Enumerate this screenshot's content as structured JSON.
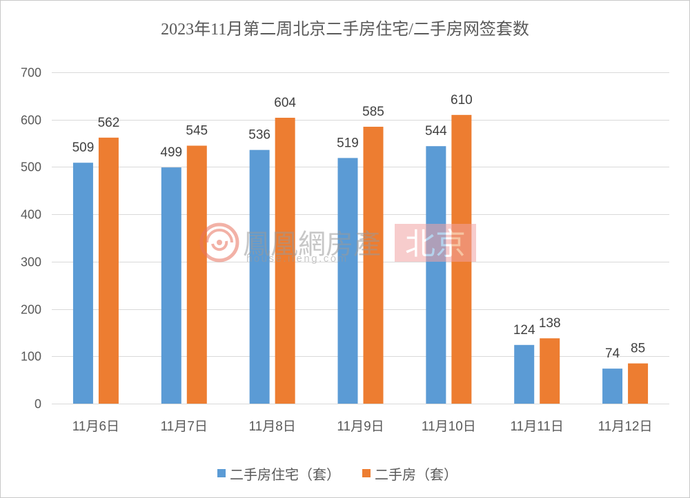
{
  "chart_data": {
    "type": "bar",
    "title": "2023年11月第二周北京二手房住宅/二手房网签套数",
    "xlabel": "",
    "ylabel": "",
    "categories": [
      "11月6日",
      "11月7日",
      "11月8日",
      "11月9日",
      "11月10日",
      "11月11日",
      "11月12日"
    ],
    "series": [
      {
        "name": "二手房住宅（套）",
        "color": "#5B9BD5",
        "values": [
          509,
          499,
          536,
          519,
          544,
          124,
          74
        ]
      },
      {
        "name": "二手房（套）",
        "color": "#ED7D31",
        "values": [
          562,
          545,
          604,
          585,
          610,
          138,
          85
        ]
      }
    ],
    "ylim": [
      0,
      700
    ],
    "yticks": [
      0,
      100,
      200,
      300,
      400,
      500,
      600,
      700
    ],
    "grid": true,
    "legend": "bottom",
    "data_labels": true
  },
  "watermark": {
    "brand": "鳳凰網房產",
    "city": "北京",
    "url": "house.ifeng.com",
    "city_box_color": "#F2A3A3",
    "logo_color": "#E8735F"
  }
}
